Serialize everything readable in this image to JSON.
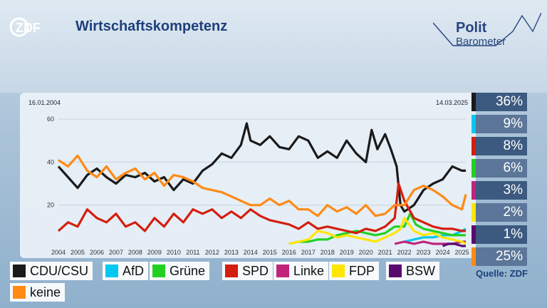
{
  "header": {
    "title": "Wirtschaftskompetenz",
    "logo_text": "ZDF",
    "brand_line1": "Polit",
    "brand_line2": "Barometer"
  },
  "dates": {
    "start": "16.01.2004",
    "end": "14.03.2025"
  },
  "source": "Quelle: ZDF",
  "colors": {
    "CDU/CSU": "#1a1a1a",
    "AfD": "#00c8f0",
    "Grüne": "#22d022",
    "SPD": "#d41e0e",
    "Linke": "#c0247a",
    "FDP": "#ffe600",
    "BSW": "#5a0a6e",
    "keine": "#ff8a14"
  },
  "current_values": [
    {
      "party": "CDU/CSU",
      "label": "36%"
    },
    {
      "party": "AfD",
      "label": "9%"
    },
    {
      "party": "SPD",
      "label": "8%"
    },
    {
      "party": "Grüne",
      "label": "6%"
    },
    {
      "party": "Linke",
      "label": "3%"
    },
    {
      "party": "FDP",
      "label": "2%"
    },
    {
      "party": "BSW",
      "label": "1%"
    },
    {
      "party": "keine",
      "label": "25%"
    }
  ],
  "legend": [
    "CDU/CSU",
    "AfD",
    "Grüne",
    "SPD",
    "Linke",
    "FDP",
    "BSW",
    "keine"
  ],
  "chart_data": {
    "type": "line",
    "title": "Wirtschaftskompetenz",
    "xlabel": "",
    "ylabel": "",
    "x_ticks": [
      "2004",
      "2005",
      "2006",
      "2007",
      "2008",
      "2009",
      "2010",
      "2011",
      "2012",
      "2013",
      "2014",
      "2015",
      "2016",
      "2017",
      "2018",
      "2019",
      "2020",
      "2021",
      "2022",
      "2023",
      "2024",
      "2025"
    ],
    "y_ticks": [
      20,
      40,
      60
    ],
    "xlim": [
      2004.0,
      2025.2
    ],
    "ylim": [
      0,
      65
    ],
    "grid": true,
    "series": [
      {
        "name": "CDU/CSU",
        "x": [
          2004.0,
          2004.5,
          2005.0,
          2005.5,
          2006.0,
          2006.5,
          2007.0,
          2007.5,
          2008.0,
          2008.5,
          2009.0,
          2009.5,
          2010.0,
          2010.5,
          2011.0,
          2011.5,
          2012.0,
          2012.5,
          2013.0,
          2013.5,
          2013.8,
          2014.0,
          2014.5,
          2015.0,
          2015.5,
          2016.0,
          2016.5,
          2017.0,
          2017.5,
          2018.0,
          2018.5,
          2019.0,
          2019.5,
          2020.0,
          2020.3,
          2020.6,
          2021.0,
          2021.3,
          2021.6,
          2021.8,
          2022.0,
          2022.5,
          2023.0,
          2023.5,
          2024.0,
          2024.5,
          2025.0,
          2025.2
        ],
        "y": [
          38,
          33,
          28,
          34,
          37,
          33,
          30,
          34,
          33,
          35,
          31,
          33,
          27,
          32,
          30,
          36,
          39,
          44,
          42,
          48,
          58,
          50,
          48,
          52,
          47,
          46,
          52,
          50,
          42,
          45,
          42,
          50,
          44,
          40,
          55,
          46,
          53,
          46,
          38,
          20,
          17,
          20,
          27,
          30,
          32,
          38,
          36,
          36
        ]
      },
      {
        "name": "AfD",
        "x": [
          2022.0,
          2022.5,
          2023.0,
          2023.5,
          2024.0,
          2024.5,
          2025.0,
          2025.2
        ],
        "y": [
          3,
          4,
          5,
          5,
          6,
          6,
          8,
          9
        ]
      },
      {
        "name": "Grüne",
        "x": [
          2016.0,
          2016.5,
          2017.0,
          2017.5,
          2018.0,
          2018.5,
          2019.0,
          2019.5,
          2020.0,
          2020.5,
          2021.0,
          2021.5,
          2022.0,
          2022.3,
          2022.6,
          2023.0,
          2023.5,
          2024.0,
          2024.5,
          2025.0,
          2025.2
        ],
        "y": [
          2,
          3,
          3,
          4,
          4,
          6,
          7,
          8,
          7,
          6,
          7,
          10,
          10,
          16,
          11,
          9,
          8,
          7,
          6,
          6,
          6
        ]
      },
      {
        "name": "SPD",
        "x": [
          2004.0,
          2004.5,
          2005.0,
          2005.5,
          2006.0,
          2006.5,
          2007.0,
          2007.5,
          2008.0,
          2008.5,
          2009.0,
          2009.5,
          2010.0,
          2010.5,
          2011.0,
          2011.5,
          2012.0,
          2012.5,
          2013.0,
          2013.5,
          2014.0,
          2014.5,
          2015.0,
          2015.5,
          2016.0,
          2016.5,
          2017.0,
          2017.5,
          2018.0,
          2018.5,
          2019.0,
          2019.5,
          2020.0,
          2020.5,
          2021.0,
          2021.5,
          2021.7,
          2022.0,
          2022.5,
          2023.0,
          2023.5,
          2024.0,
          2024.5,
          2025.0,
          2025.2
        ],
        "y": [
          8,
          12,
          10,
          18,
          14,
          12,
          16,
          10,
          12,
          8,
          14,
          10,
          16,
          12,
          18,
          16,
          18,
          14,
          17,
          14,
          18,
          15,
          13,
          12,
          11,
          9,
          12,
          9,
          10,
          9,
          8,
          7,
          9,
          8,
          10,
          14,
          30,
          22,
          14,
          12,
          10,
          9,
          9,
          8,
          8
        ]
      },
      {
        "name": "Linke",
        "x": [
          2021.5,
          2022.0,
          2022.5,
          2023.0,
          2023.5,
          2024.0,
          2024.5,
          2025.0,
          2025.2
        ],
        "y": [
          2,
          3,
          2,
          3,
          2,
          2,
          2,
          3,
          3
        ]
      },
      {
        "name": "FDP",
        "x": [
          2016.0,
          2016.5,
          2017.0,
          2017.5,
          2018.0,
          2018.5,
          2019.0,
          2019.5,
          2020.0,
          2020.5,
          2021.0,
          2021.5,
          2021.8,
          2022.0,
          2022.5,
          2023.0,
          2023.5,
          2024.0,
          2024.5,
          2025.0,
          2025.2
        ],
        "y": [
          2,
          3,
          4,
          8,
          7,
          5,
          6,
          5,
          4,
          3,
          5,
          7,
          9,
          14,
          8,
          6,
          7,
          5,
          4,
          3,
          2
        ]
      },
      {
        "name": "BSW",
        "x": [
          2024.0,
          2024.3,
          2024.6,
          2025.0,
          2025.2
        ],
        "y": [
          1,
          2,
          2,
          1,
          1
        ]
      },
      {
        "name": "keine",
        "x": [
          2004.0,
          2004.5,
          2005.0,
          2005.5,
          2006.0,
          2006.5,
          2007.0,
          2007.5,
          2008.0,
          2008.5,
          2009.0,
          2009.5,
          2010.0,
          2010.5,
          2011.0,
          2011.5,
          2012.0,
          2012.5,
          2013.0,
          2013.5,
          2014.0,
          2014.5,
          2015.0,
          2015.5,
          2016.0,
          2016.5,
          2017.0,
          2017.5,
          2018.0,
          2018.5,
          2019.0,
          2019.5,
          2020.0,
          2020.5,
          2021.0,
          2021.5,
          2022.0,
          2022.5,
          2023.0,
          2023.5,
          2024.0,
          2024.5,
          2025.0,
          2025.2
        ],
        "y": [
          41,
          38,
          43,
          36,
          33,
          38,
          32,
          35,
          37,
          32,
          35,
          29,
          34,
          33,
          31,
          28,
          27,
          26,
          24,
          22,
          20,
          20,
          23,
          20,
          22,
          18,
          18,
          15,
          20,
          17,
          19,
          16,
          20,
          15,
          16,
          20,
          20,
          27,
          29,
          27,
          24,
          20,
          18,
          25
        ]
      }
    ]
  }
}
